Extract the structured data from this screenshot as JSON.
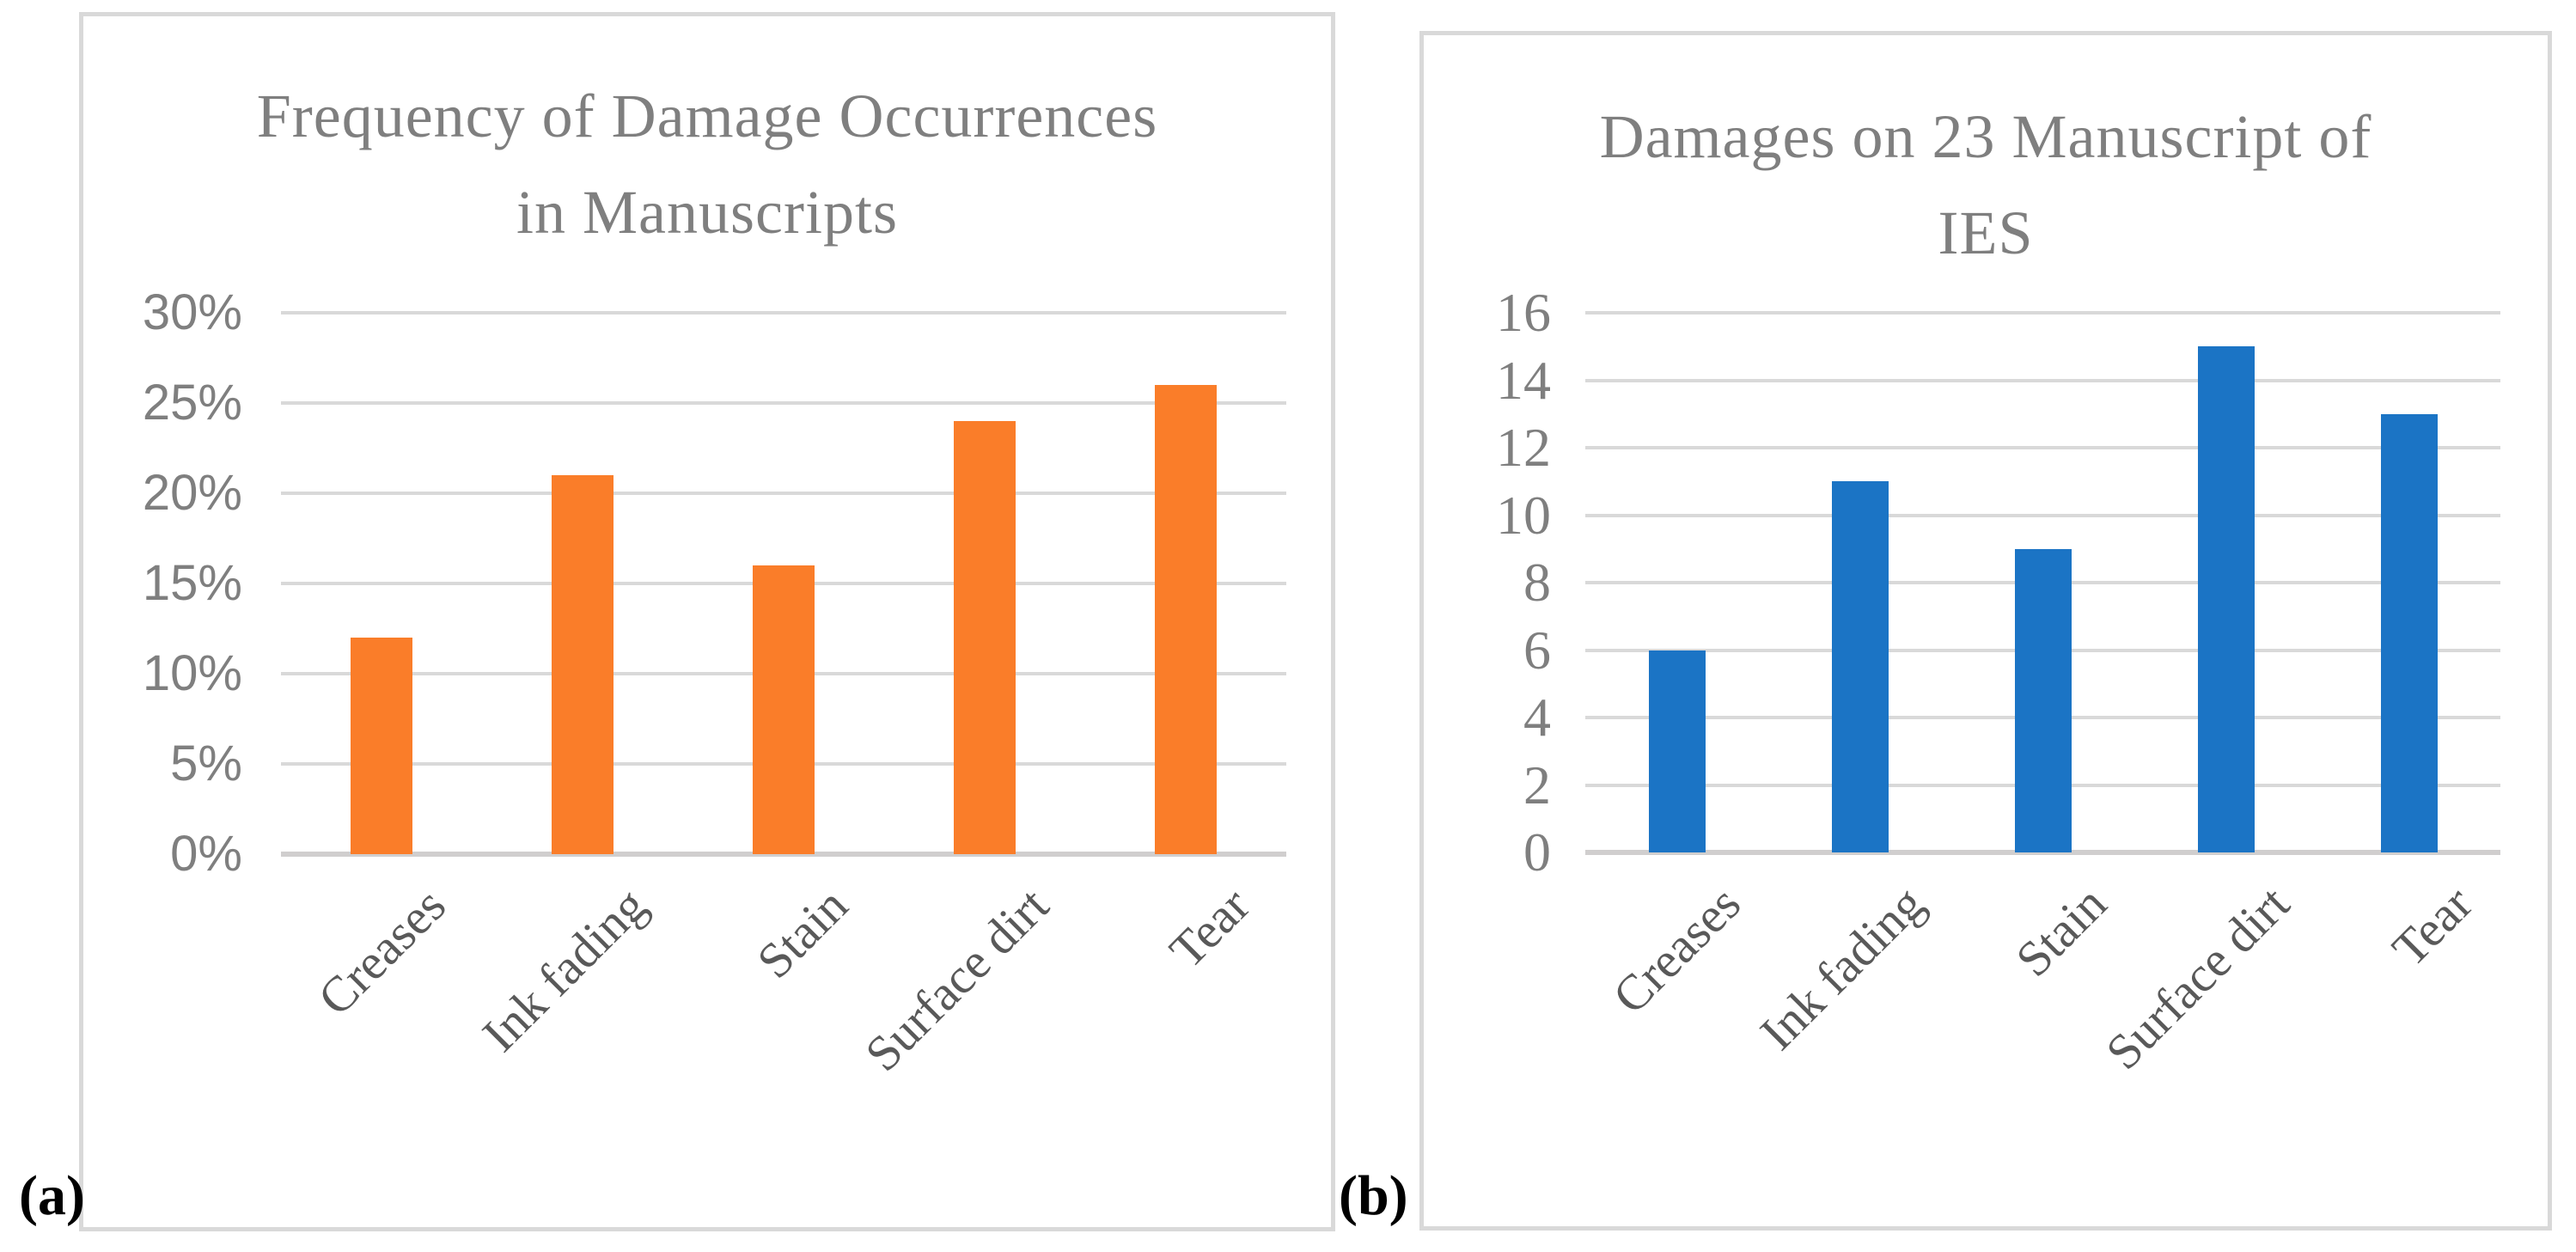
{
  "figure": {
    "sublabels": {
      "a": "(a)",
      "b": "(b)"
    },
    "colors": {
      "background": "#FFFFFF",
      "panel_border": "#D9D9D9",
      "gridline": "#D9D9D9",
      "baseline": "#D0CECE",
      "title_text": "#7F7F7F",
      "tick_text": "#7F7F7F",
      "category_text": "#595959",
      "sublabel_text": "#000000",
      "orange_series": "#FA7D29",
      "blue_series": "#1B74C5"
    }
  },
  "chart_data": [
    {
      "id": "a",
      "type": "bar",
      "title_lines": [
        "Frequency of Damage Occurrences",
        "in Manuscripts"
      ],
      "categories": [
        "Creases",
        "Ink fading",
        "Stain",
        "Surface dirt",
        "Tear"
      ],
      "values": [
        12,
        21,
        16,
        24,
        26
      ],
      "value_unit": "%",
      "ylim": [
        0,
        30
      ],
      "ytick_step": 5,
      "ytick_suffix": "%",
      "ytick_labels": [
        "0%",
        "5%",
        "10%",
        "15%",
        "20%",
        "25%",
        "30%"
      ],
      "bar_color": "#FA7D29",
      "grid": true,
      "legend": "none"
    },
    {
      "id": "b",
      "type": "bar",
      "title_lines": [
        "Damages on 23 Manuscript of",
        "IES"
      ],
      "categories": [
        "Creases",
        "Ink fading",
        "Stain",
        "Surface dirt",
        "Tear"
      ],
      "values": [
        6,
        11,
        9,
        15,
        13
      ],
      "value_unit": "",
      "ylim": [
        0,
        16
      ],
      "ytick_step": 2,
      "ytick_suffix": "",
      "ytick_labels": [
        "0",
        "2",
        "4",
        "6",
        "8",
        "10",
        "12",
        "14",
        "16"
      ],
      "bar_color": "#1B74C5",
      "grid": true,
      "legend": "none"
    }
  ]
}
